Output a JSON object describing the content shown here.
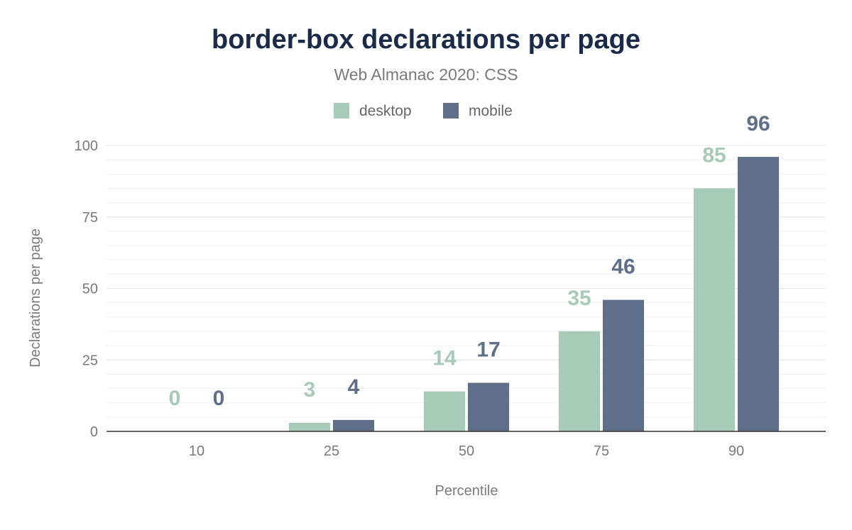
{
  "chart_data": {
    "type": "bar",
    "title": "border-box declarations per page",
    "subtitle": "Web Almanac 2020: CSS",
    "xlabel": "Percentile",
    "ylabel": "Declarations per page",
    "categories": [
      "10",
      "25",
      "50",
      "75",
      "90"
    ],
    "series": [
      {
        "name": "desktop",
        "color": "#a8cab9",
        "values": [
          0,
          3,
          14,
          35,
          85
        ]
      },
      {
        "name": "mobile",
        "color": "#5f6f8a",
        "values": [
          0,
          4,
          17,
          46,
          96
        ]
      }
    ],
    "ylim": [
      0,
      100
    ],
    "yticks": [
      "0",
      "25",
      "50",
      "75",
      "100"
    ],
    "grid": true,
    "legend": "top-center",
    "title_color": "#1a2b4a"
  }
}
